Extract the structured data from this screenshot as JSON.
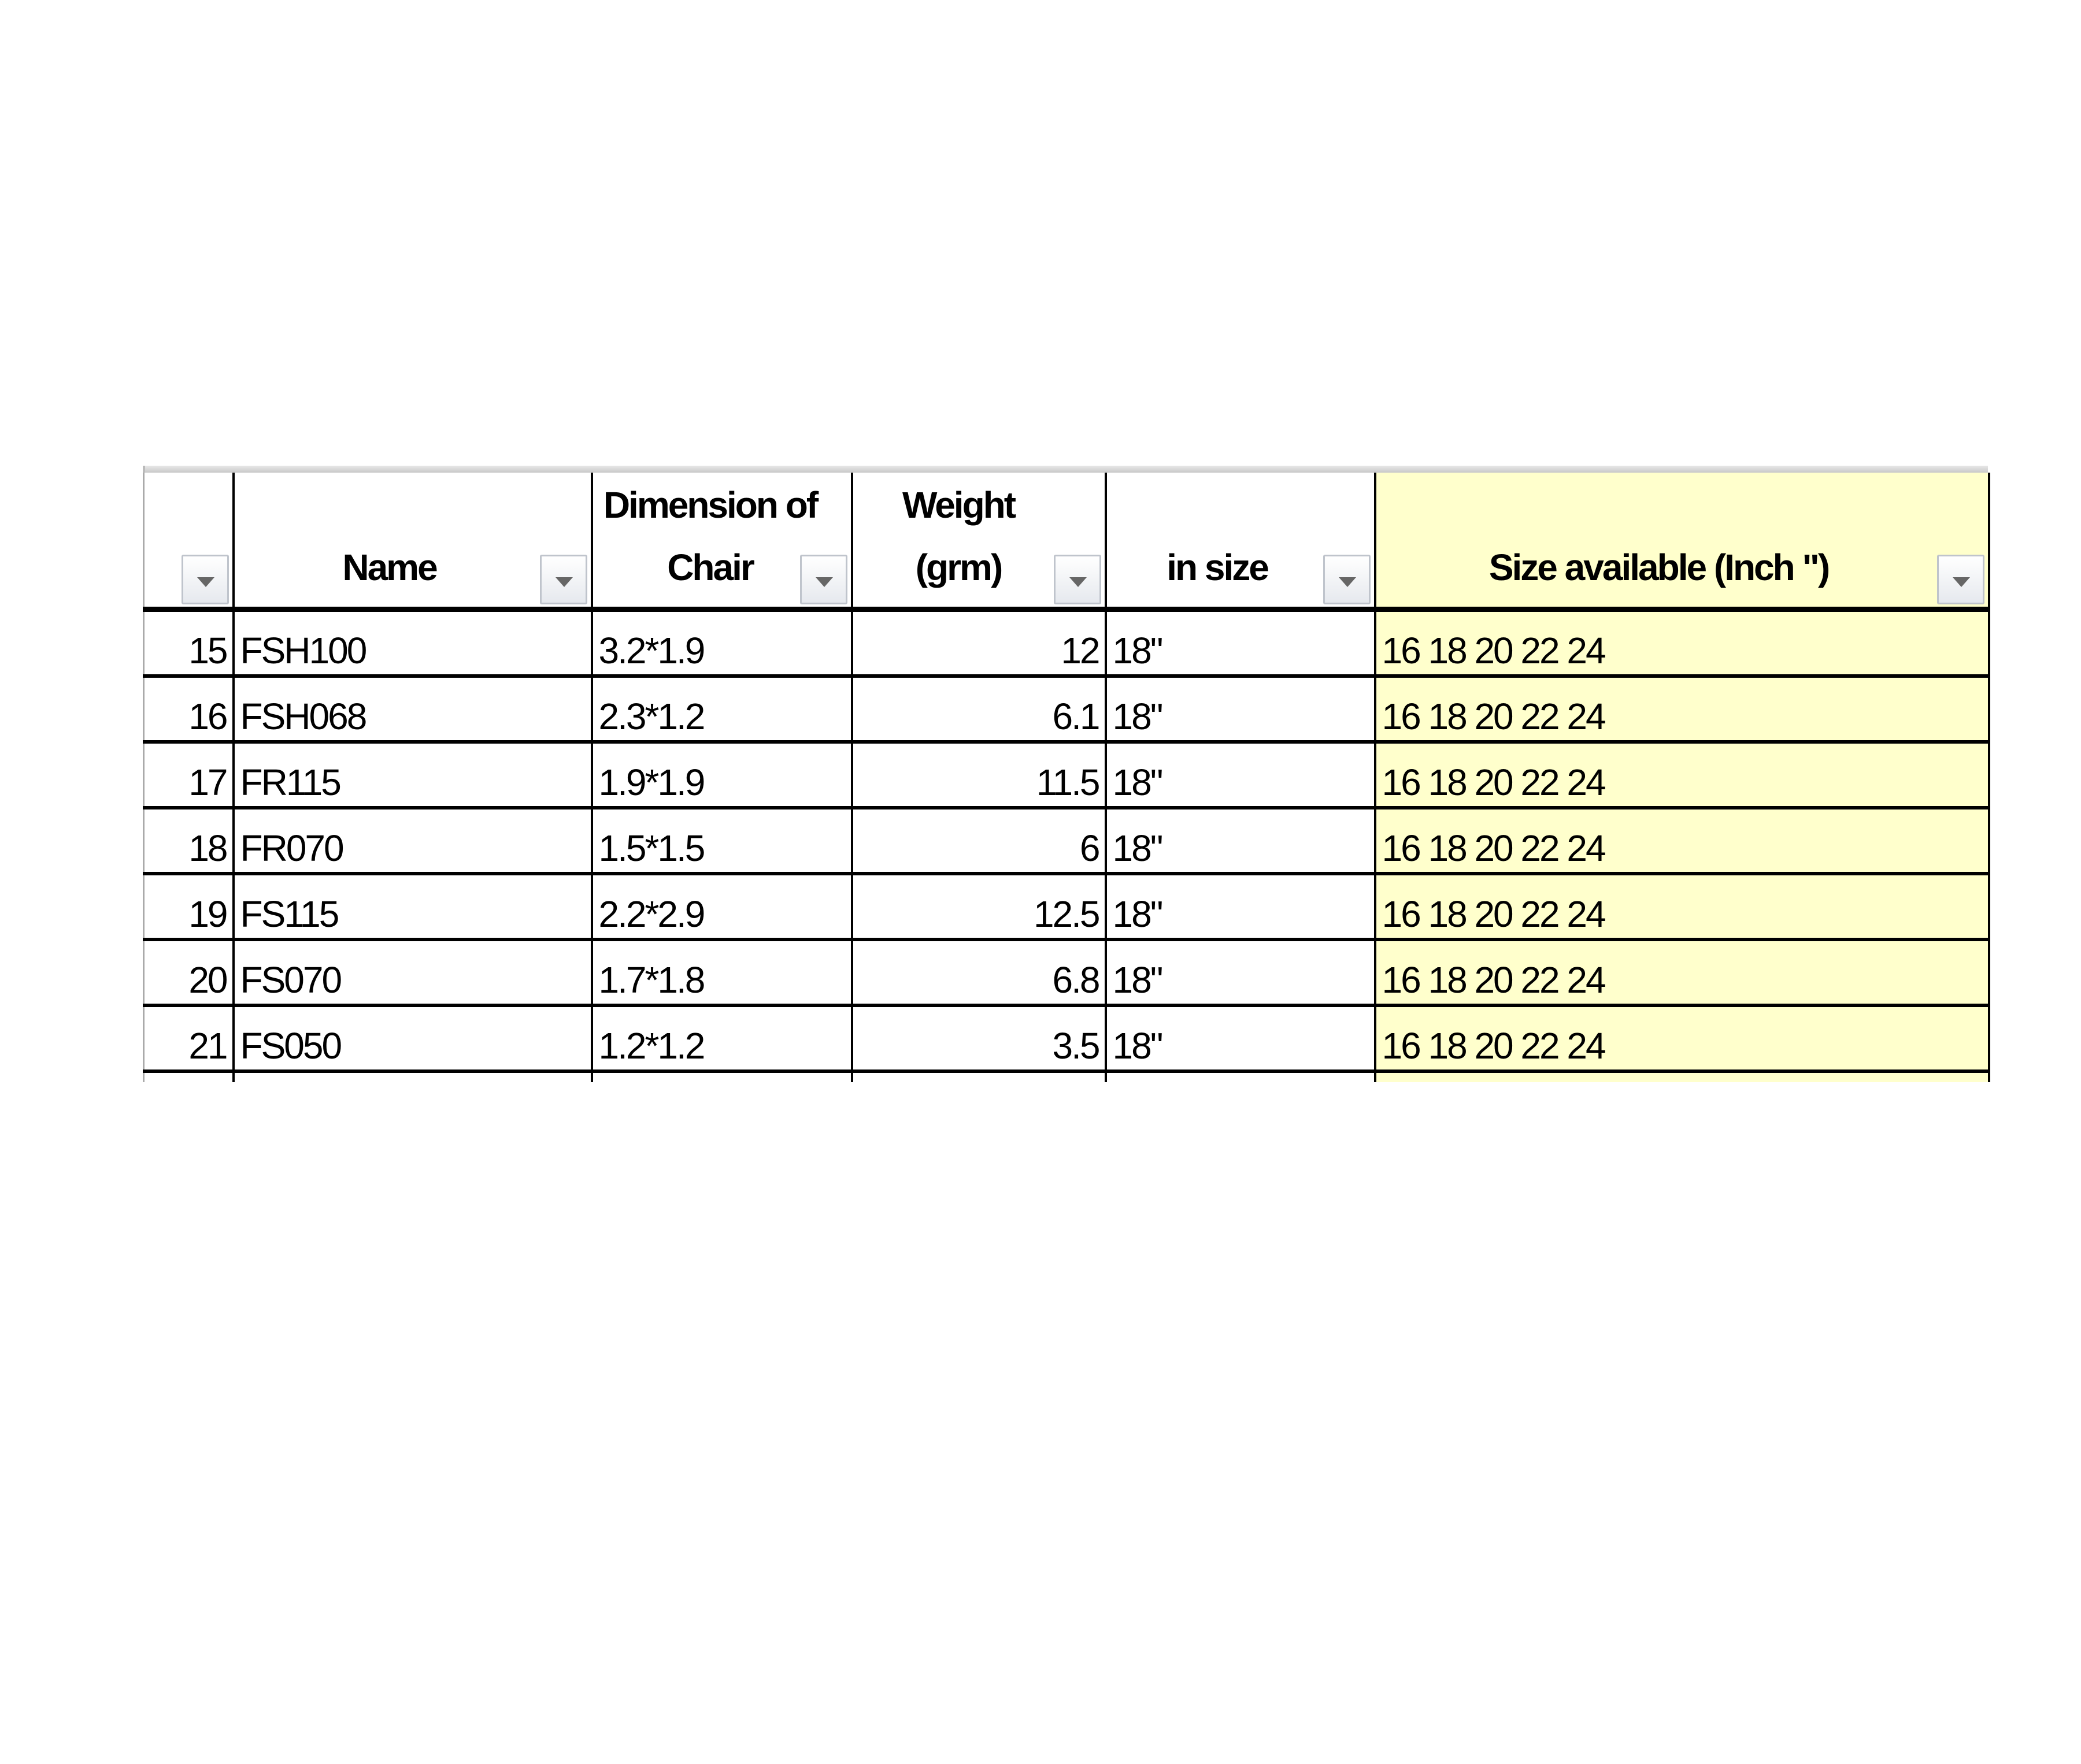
{
  "table": {
    "headers": [
      {
        "label": ""
      },
      {
        "label": "Name"
      },
      {
        "label": "Dimension of Chair"
      },
      {
        "label": "Weight (grm)"
      },
      {
        "label": "in size"
      },
      {
        "label": "Size available (Inch \")"
      }
    ],
    "rows": [
      [
        "15",
        "FSH100",
        "3.2*1.9",
        "12",
        "18\"",
        "16 18 20 22 24"
      ],
      [
        "16",
        "FSH068",
        "2.3*1.2",
        "6.1",
        "18\"",
        "16 18 20 22 24"
      ],
      [
        "17",
        "FR115",
        "1.9*1.9",
        "11.5",
        "18\"",
        "16 18 20 22 24"
      ],
      [
        "18",
        "FR070",
        "1.5*1.5",
        "6",
        "18\"",
        "16 18 20 22 24"
      ],
      [
        "19",
        "FS115",
        "2.2*2.9",
        "12.5",
        "18\"",
        "16 18 20 22 24"
      ],
      [
        "20",
        "FS070",
        "1.7*1.8",
        "6.8",
        "18\"",
        "16 18 20 22 24"
      ],
      [
        "21",
        "FS050",
        "1.2*1.2",
        "3.5",
        "18\"",
        "16 18 20 22 24"
      ]
    ],
    "highlight_color": "#ffffcc",
    "filter_icon": "dropdown-arrow-icon"
  }
}
